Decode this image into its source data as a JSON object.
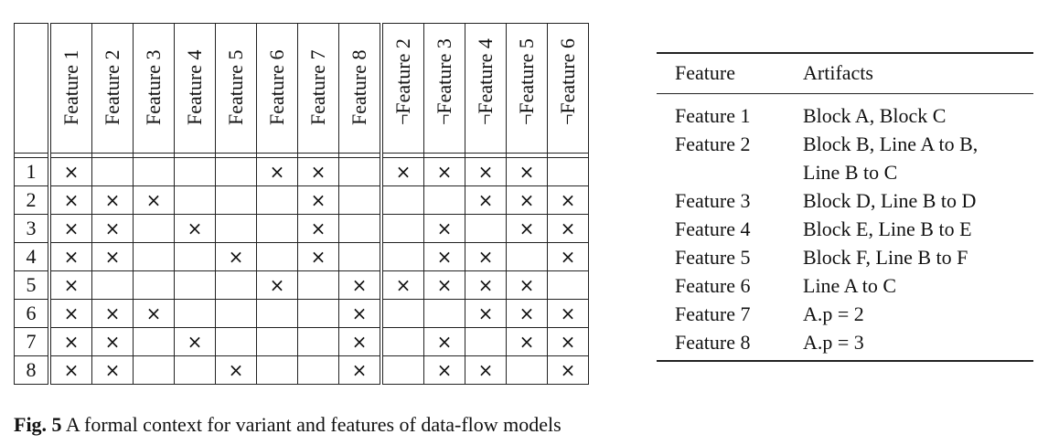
{
  "context_table": {
    "columns": [
      "Feature 1",
      "Feature 2",
      "Feature 3",
      "Feature 4",
      "Feature 5",
      "Feature 6",
      "Feature 7",
      "Feature 8",
      "¬Feature 2",
      "¬Feature 3",
      "¬Feature 4",
      "¬Feature 5",
      "¬Feature 6"
    ],
    "rows": [
      {
        "label": "1",
        "cells": [
          "×",
          "",
          "",
          "",
          "",
          "×",
          "×",
          "",
          "×",
          "×",
          "×",
          "×",
          ""
        ]
      },
      {
        "label": "2",
        "cells": [
          "×",
          "×",
          "×",
          "",
          "",
          "",
          "×",
          "",
          "",
          "",
          "×",
          "×",
          "×"
        ]
      },
      {
        "label": "3",
        "cells": [
          "×",
          "×",
          "",
          "×",
          "",
          "",
          "×",
          "",
          "",
          "×",
          "",
          "×",
          "×"
        ]
      },
      {
        "label": "4",
        "cells": [
          "×",
          "×",
          "",
          "",
          "×",
          "",
          "×",
          "",
          "",
          "×",
          "×",
          "",
          "×"
        ]
      },
      {
        "label": "5",
        "cells": [
          "×",
          "",
          "",
          "",
          "",
          "×",
          "",
          "×",
          "×",
          "×",
          "×",
          "×",
          ""
        ]
      },
      {
        "label": "6",
        "cells": [
          "×",
          "×",
          "×",
          "",
          "",
          "",
          "",
          "×",
          "",
          "",
          "×",
          "×",
          "×"
        ]
      },
      {
        "label": "7",
        "cells": [
          "×",
          "×",
          "",
          "×",
          "",
          "",
          "",
          "×",
          "",
          "×",
          "",
          "×",
          "×"
        ]
      },
      {
        "label": "8",
        "cells": [
          "×",
          "×",
          "",
          "",
          "×",
          "",
          "",
          "×",
          "",
          "×",
          "×",
          "",
          "×"
        ]
      }
    ]
  },
  "artifact_table": {
    "headers": [
      "Feature",
      "Artifacts"
    ],
    "rows": [
      {
        "feature": "Feature 1",
        "artifacts": "Block A, Block C"
      },
      {
        "feature": "Feature 2",
        "artifacts": "Block B, Line A to B,"
      },
      {
        "feature": "",
        "artifacts": "Line B to C"
      },
      {
        "feature": "Feature 3",
        "artifacts": "Block D, Line B to D"
      },
      {
        "feature": "Feature 4",
        "artifacts": "Block E, Line B to E"
      },
      {
        "feature": "Feature 5",
        "artifacts": "Block F, Line B to F"
      },
      {
        "feature": "Feature 6",
        "artifacts": "Line A to C"
      },
      {
        "feature": "Feature 7",
        "artifacts": "A.p = 2"
      },
      {
        "feature": "Feature 8",
        "artifacts": "A.p = 3"
      }
    ]
  },
  "caption": {
    "label": "Fig. 5",
    "text": "A formal context for variant and features of data-flow models"
  }
}
